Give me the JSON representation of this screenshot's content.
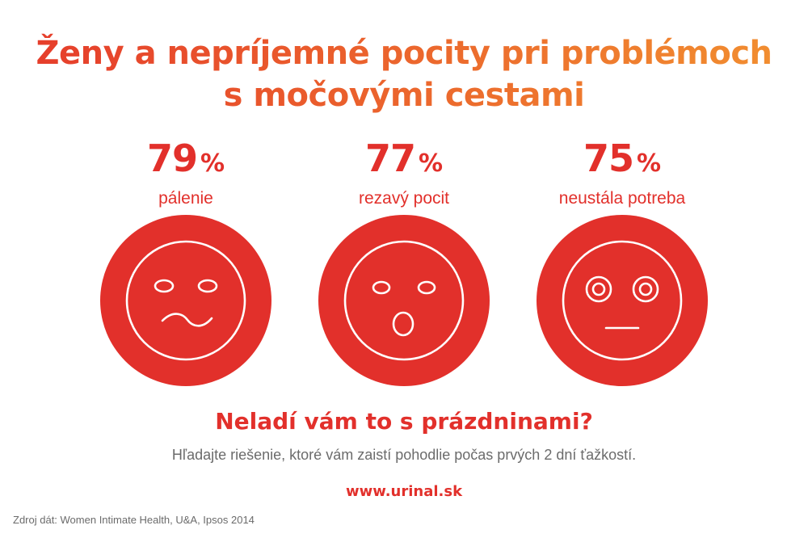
{
  "title": {
    "line1": "Ženy a nepríjemné pocity pri problémoch",
    "line2": "s močovými cestami"
  },
  "stats": [
    {
      "value": "79",
      "unit": "%",
      "label": "pálenie",
      "icon": "wavy-mouth-face-icon"
    },
    {
      "value": "77",
      "unit": "%",
      "label": "rezavý pocit",
      "icon": "surprised-face-icon"
    },
    {
      "value": "75",
      "unit": "%",
      "label": "neustála potreba",
      "icon": "wide-eyed-face-icon"
    }
  ],
  "question": "Neladí vám to s prázdninami?",
  "subtitle": "Hľadajte riešenie, ktoré vám zaistí pohodlie počas prvých 2 dní ťažkostí.",
  "url": "www.urinal.sk",
  "source": "Zdroj dát: Women Intimate Health, U&A, Ipsos 2014",
  "colors": {
    "accent_red": "#e2302b",
    "title_gradient_start": "#e53a2b",
    "title_gradient_end": "#f29130",
    "text_gray": "#6b6b6b"
  }
}
